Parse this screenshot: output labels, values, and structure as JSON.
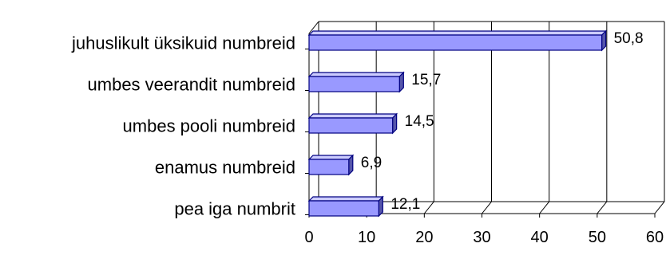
{
  "chart_data": {
    "type": "bar",
    "orientation": "horizontal",
    "style": "3d",
    "categories": [
      "juhuslikult üksikuid numbreid",
      "umbes veerandit numbreid",
      "umbes pooli numbreid",
      "enamus numbreid",
      "pea iga numbrit"
    ],
    "values": [
      50.8,
      15.7,
      14.5,
      6.9,
      12.1
    ],
    "data_labels": [
      "50,8",
      "15,7",
      "14,5",
      "6,9",
      "12,1"
    ],
    "xlim": [
      0,
      60
    ],
    "x_ticks": [
      0,
      10,
      20,
      30,
      40,
      50,
      60
    ],
    "x_tick_labels": [
      "0",
      "10",
      "20",
      "30",
      "40",
      "50",
      "60"
    ],
    "grid": "vertical",
    "legend": "none",
    "colors": {
      "bar_front": "#9999ff",
      "bar_top": "#ccccff",
      "bar_side": "#5555aa",
      "outline": "#000080",
      "grid": "#000000"
    }
  }
}
